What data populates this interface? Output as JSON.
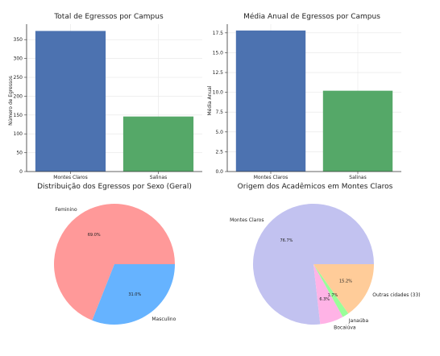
{
  "chart_data": [
    {
      "type": "bar",
      "title": "Total de Egressos por Campus",
      "xlabel": "",
      "ylabel": "Número de Egressos",
      "categories": [
        "Montes Claros",
        "Salinas"
      ],
      "values": [
        373,
        146
      ],
      "colors": [
        "#4c72b0",
        "#55a868"
      ],
      "ylim": [
        0,
        391
      ],
      "yticks": [
        0,
        50,
        100,
        150,
        200,
        250,
        300,
        350
      ],
      "ytick_labels": [
        "0",
        "50",
        "100",
        "150",
        "200",
        "250",
        "300",
        "350"
      ],
      "grid": true
    },
    {
      "type": "bar",
      "title": "Média Anual de Egressos por Campus",
      "xlabel": "",
      "ylabel": "Média Anual",
      "categories": [
        "Montes Claros",
        "Salinas"
      ],
      "values": [
        17.8,
        10.2
      ],
      "colors": [
        "#4c72b0",
        "#55a868"
      ],
      "ylim": [
        0,
        18.6
      ],
      "yticks": [
        0,
        2.5,
        5,
        7.5,
        10,
        12.5,
        15,
        17.5
      ],
      "ytick_labels": [
        "0.0",
        "2.5",
        "5.0",
        "7.5",
        "10.0",
        "12.5",
        "15.0",
        "17.5"
      ],
      "grid": true
    },
    {
      "type": "pie",
      "title": "Distribuição dos Egressos por Sexo (Geral)",
      "labels": [
        "Feminino",
        "Masculino"
      ],
      "values": [
        69.0,
        31.0
      ],
      "pct_labels": [
        "69.0%",
        "31.0%"
      ],
      "colors": [
        "#ff9999",
        "#66b3ff"
      ]
    },
    {
      "type": "pie",
      "title": "Origem dos Acadêmicos em Montes Claros",
      "labels": [
        "Montes Claros",
        "Bocaiúva",
        "Janaúba",
        "Outras cidades (33)"
      ],
      "values": [
        76.7,
        6.3,
        1.7,
        15.2
      ],
      "pct_labels": [
        "76.7%",
        "6.3%",
        "1.7%",
        "15.2%"
      ],
      "colors": [
        "#c2c2f0",
        "#ffb3e6",
        "#99ff99",
        "#ffcc99"
      ]
    }
  ]
}
